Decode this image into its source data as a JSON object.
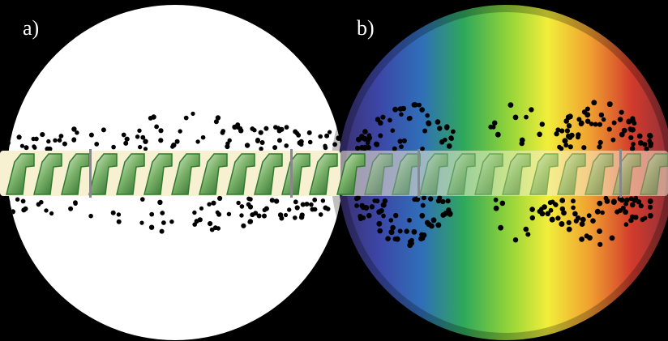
{
  "panels": [
    {
      "id": "a",
      "label": "a)",
      "background": "white",
      "background_color": "#ffffff"
    },
    {
      "id": "b",
      "label": "b)",
      "background": "spectrum-gradient",
      "gradient_colors": [
        "#3a2f6e",
        "#3c47a8",
        "#2f6fb8",
        "#2fa85a",
        "#8cd23a",
        "#f2ee3a",
        "#f0a030",
        "#d23b2c",
        "#8a2e3a"
      ]
    }
  ],
  "band": {
    "color": "#f7f1d2",
    "element_color": "#2f7a2f",
    "element_highlight": "#e8f3e0",
    "divider_color": "#888888",
    "segments_per_panel": 3
  },
  "particles": {
    "color": "#000000"
  },
  "colors": {
    "page_background": "#000000",
    "label_text": "#ffffff"
  }
}
